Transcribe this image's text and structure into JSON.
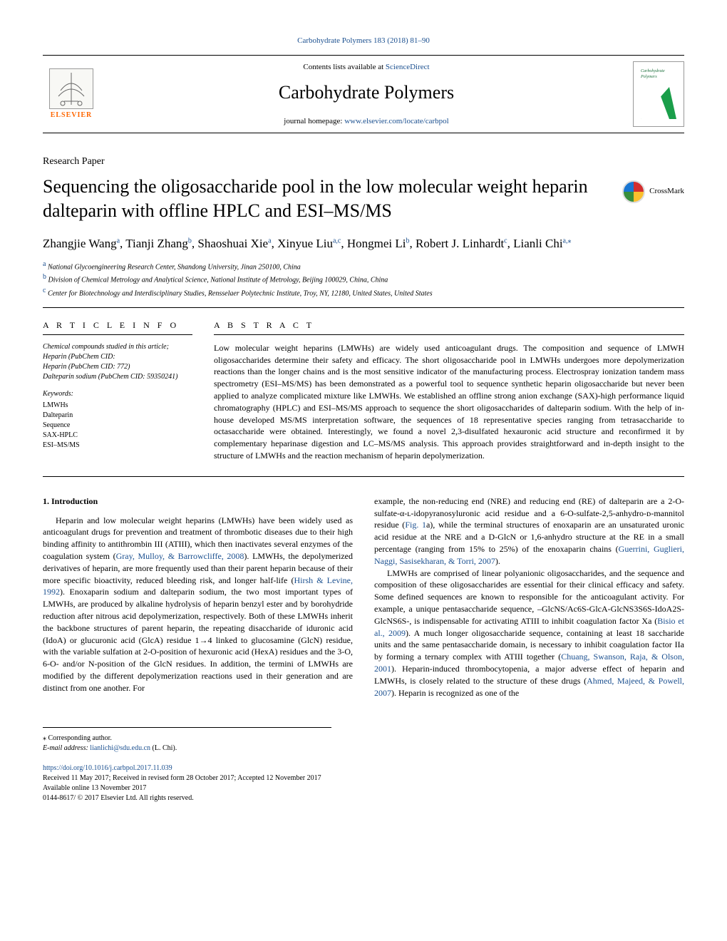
{
  "citation": "Carbohydrate Polymers 183 (2018) 81–90",
  "header": {
    "contents_prefix": "Contents lists available at ",
    "contents_link": "ScienceDirect",
    "journal_name": "Carbohydrate Polymers",
    "homepage_prefix": "journal homepage: ",
    "homepage_link": "www.elsevier.com/locate/carbpol",
    "elsevier_label": "ELSEVIER",
    "cover_label": "Carbohydrate Polymers"
  },
  "article_type": "Research Paper",
  "title": "Sequencing the oligosaccharide pool in the low molecular weight heparin dalteparin with offline HPLC and ESI–MS/MS",
  "crossmark_label": "CrossMark",
  "authors_html": "Zhangjie Wang<sup class='sup'>a</sup>, Tianji Zhang<sup class='sup'>b</sup>, Shaoshuai Xie<sup class='sup'>a</sup>, Xinyue Liu<sup class='sup'>a,c</sup>, Hongmei Li<sup class='sup'>b</sup>, Robert J. Linhardt<sup class='sup'>c</sup>, Lianli Chi<sup class='sup'>a,</sup><sup class='sup'>⁎</sup>",
  "affiliations": {
    "a": "National Glycoengineering Research Center, Shandong University, Jinan 250100, China",
    "b": "Division of Chemical Metrology and Analytical Science, National Institute of Metrology, Beijing 100029, China, China",
    "c": "Center for Biotechnology and Interdisciplinary Studies, Rensselaer Polytechnic Institute, Troy, NY, 12180, United States, United States"
  },
  "info_header": "A R T I C L E   I N F O",
  "abstract_header": "A B S T R A C T",
  "compounds": {
    "label": "Chemical compounds studied in this article;",
    "line1": "Heparin (PubChem CID:",
    "line2": "Heparin (PubChem CID: 772)",
    "line3": "Dalteparin sodium (PubChem CID: 59350241)"
  },
  "keywords_label": "Keywords:",
  "keywords": [
    "LMWHs",
    "Dalteparin",
    "Sequence",
    "SAX-HPLC",
    "ESI–MS/MS"
  ],
  "abstract": "Low molecular weight heparins (LMWHs) are widely used anticoagulant drugs. The composition and sequence of LMWH oligosaccharides determine their safety and efficacy. The short oligosaccharide pool in LMWHs undergoes more depolymerization reactions than the longer chains and is the most sensitive indicator of the manufacturing process. Electrospray ionization tandem mass spectrometry (ESI–MS/MS) has been demonstrated as a powerful tool to sequence synthetic heparin oligosaccharide but never been applied to analyze complicated mixture like LMWHs. We established an offline strong anion exchange (SAX)-high performance liquid chromatography (HPLC) and ESI–MS/MS approach to sequence the short oligosaccharides of dalteparin sodium. With the help of in-house developed MS/MS interpretation software, the sequences of 18 representative species ranging from tetrasaccharide to octasaccharide were obtained. Interestingly, we found a novel 2,3-disulfated hexauronic acid structure and reconfirmed it by complementary heparinase digestion and LC–MS/MS analysis. This approach provides straightforward and in-depth insight to the structure of LMWHs and the reaction mechanism of heparin depolymerization.",
  "intro_header": "1. Introduction",
  "intro_p1_pre": "Heparin and low molecular weight heparins (LMWHs) have been widely used as anticoagulant drugs for prevention and treatment of thrombotic diseases due to their high binding affinity to antithrombin III (ATIII), which then inactivates several enzymes of the coagulation system (",
  "intro_cite1": "Gray, Mulloy, & Barrowcliffe, 2008",
  "intro_p1_mid1": "). LMWHs, the depolymerized derivatives of heparin, are more frequently used than their parent heparin because of their more specific bioactivity, reduced bleeding risk, and longer half-life (",
  "intro_cite2": "Hirsh & Levine, 1992",
  "intro_p1_mid2": "). Enoxaparin sodium and dalteparin sodium, the two most important types of LMWHs, are produced by alkaline hydrolysis of heparin benzyl ester and by borohydride reduction after nitrous acid depolymerization, respectively. Both of these LMWHs inherit the backbone structures of parent heparin, the repeating disaccharide of iduronic acid (IdoA) or glucuronic acid (GlcA) residue 1→4 linked to glucosamine (GlcN) residue, with the variable sulfation at 2-O-position of hexuronic acid (HexA) residues and the 3-O, 6-O- and/or N-position of the GlcN residues. In addition, the termini of LMWHs are modified by the different depolymerization reactions used in their generation and are distinct from one another. For",
  "intro_p2_pre": "example, the non-reducing end (NRE) and reducing end (RE) of dalteparin are a 2-O-sulfate-α-ʟ-idopyranosyluronic acid residue and a 6-O-sulfate-2,5-anhydro-ᴅ-mannitol residue (",
  "intro_cite3": "Fig. 1",
  "intro_p2_mid": "a), while the terminal structures of enoxaparin are an unsaturated uronic acid residue at the NRE and a D-GlcN or 1,6-anhydro structure at the RE in a small percentage (ranging from 15% to 25%) of the enoxaparin chains (",
  "intro_cite4": "Guerrini, Guglieri, Naggi, Sasisekharan, & Torri, 2007",
  "intro_p2_post": ").",
  "intro_p3_pre": "LMWHs are comprised of linear polyanionic oligosaccharides, and the sequence and composition of these oligosaccharides are essential for their clinical efficacy and safety. Some defined sequences are known to responsible for the anticoagulant activity. For example, a unique pentasaccharide sequence, –GlcNS/Ac6S-GlcA-GlcNS3S6S-IdoA2S-GlcNS6S-, is indispensable for activating ATIII to inhibit coagulation factor Xa (",
  "intro_cite5": "Bisio et al., 2009",
  "intro_p3_mid1": "). A much longer oligosaccharide sequence, containing at least 18 saccharide units and the same pentasaccharide domain, is necessary to inhibit coagulation factor IIa by forming a ternary complex with ATIII together (",
  "intro_cite6": "Chuang, Swanson, Raja, & Olson, 2001",
  "intro_p3_mid2": "). Heparin-induced thrombocytopenia, a major adverse effect of heparin and LMWHs, is closely related to the structure of these drugs (",
  "intro_cite7": "Ahmed, Majeed, & Powell, 2007",
  "intro_p3_post": "). Heparin is recognized as one of the",
  "footer": {
    "corresponding": "⁎ Corresponding author.",
    "email_label": "E-mail address: ",
    "email": "lianlichi@sdu.edu.cn",
    "email_suffix": " (L. Chi).",
    "doi": "https://doi.org/10.1016/j.carbpol.2017.11.039",
    "history": "Received 11 May 2017; Received in revised form 28 October 2017; Accepted 12 November 2017",
    "online": "Available online 13 November 2017",
    "copyright": "0144-8617/ © 2017 Elsevier Ltd. All rights reserved."
  },
  "colors": {
    "link": "#1a4f8f",
    "elsevier_orange": "#ff6600"
  }
}
